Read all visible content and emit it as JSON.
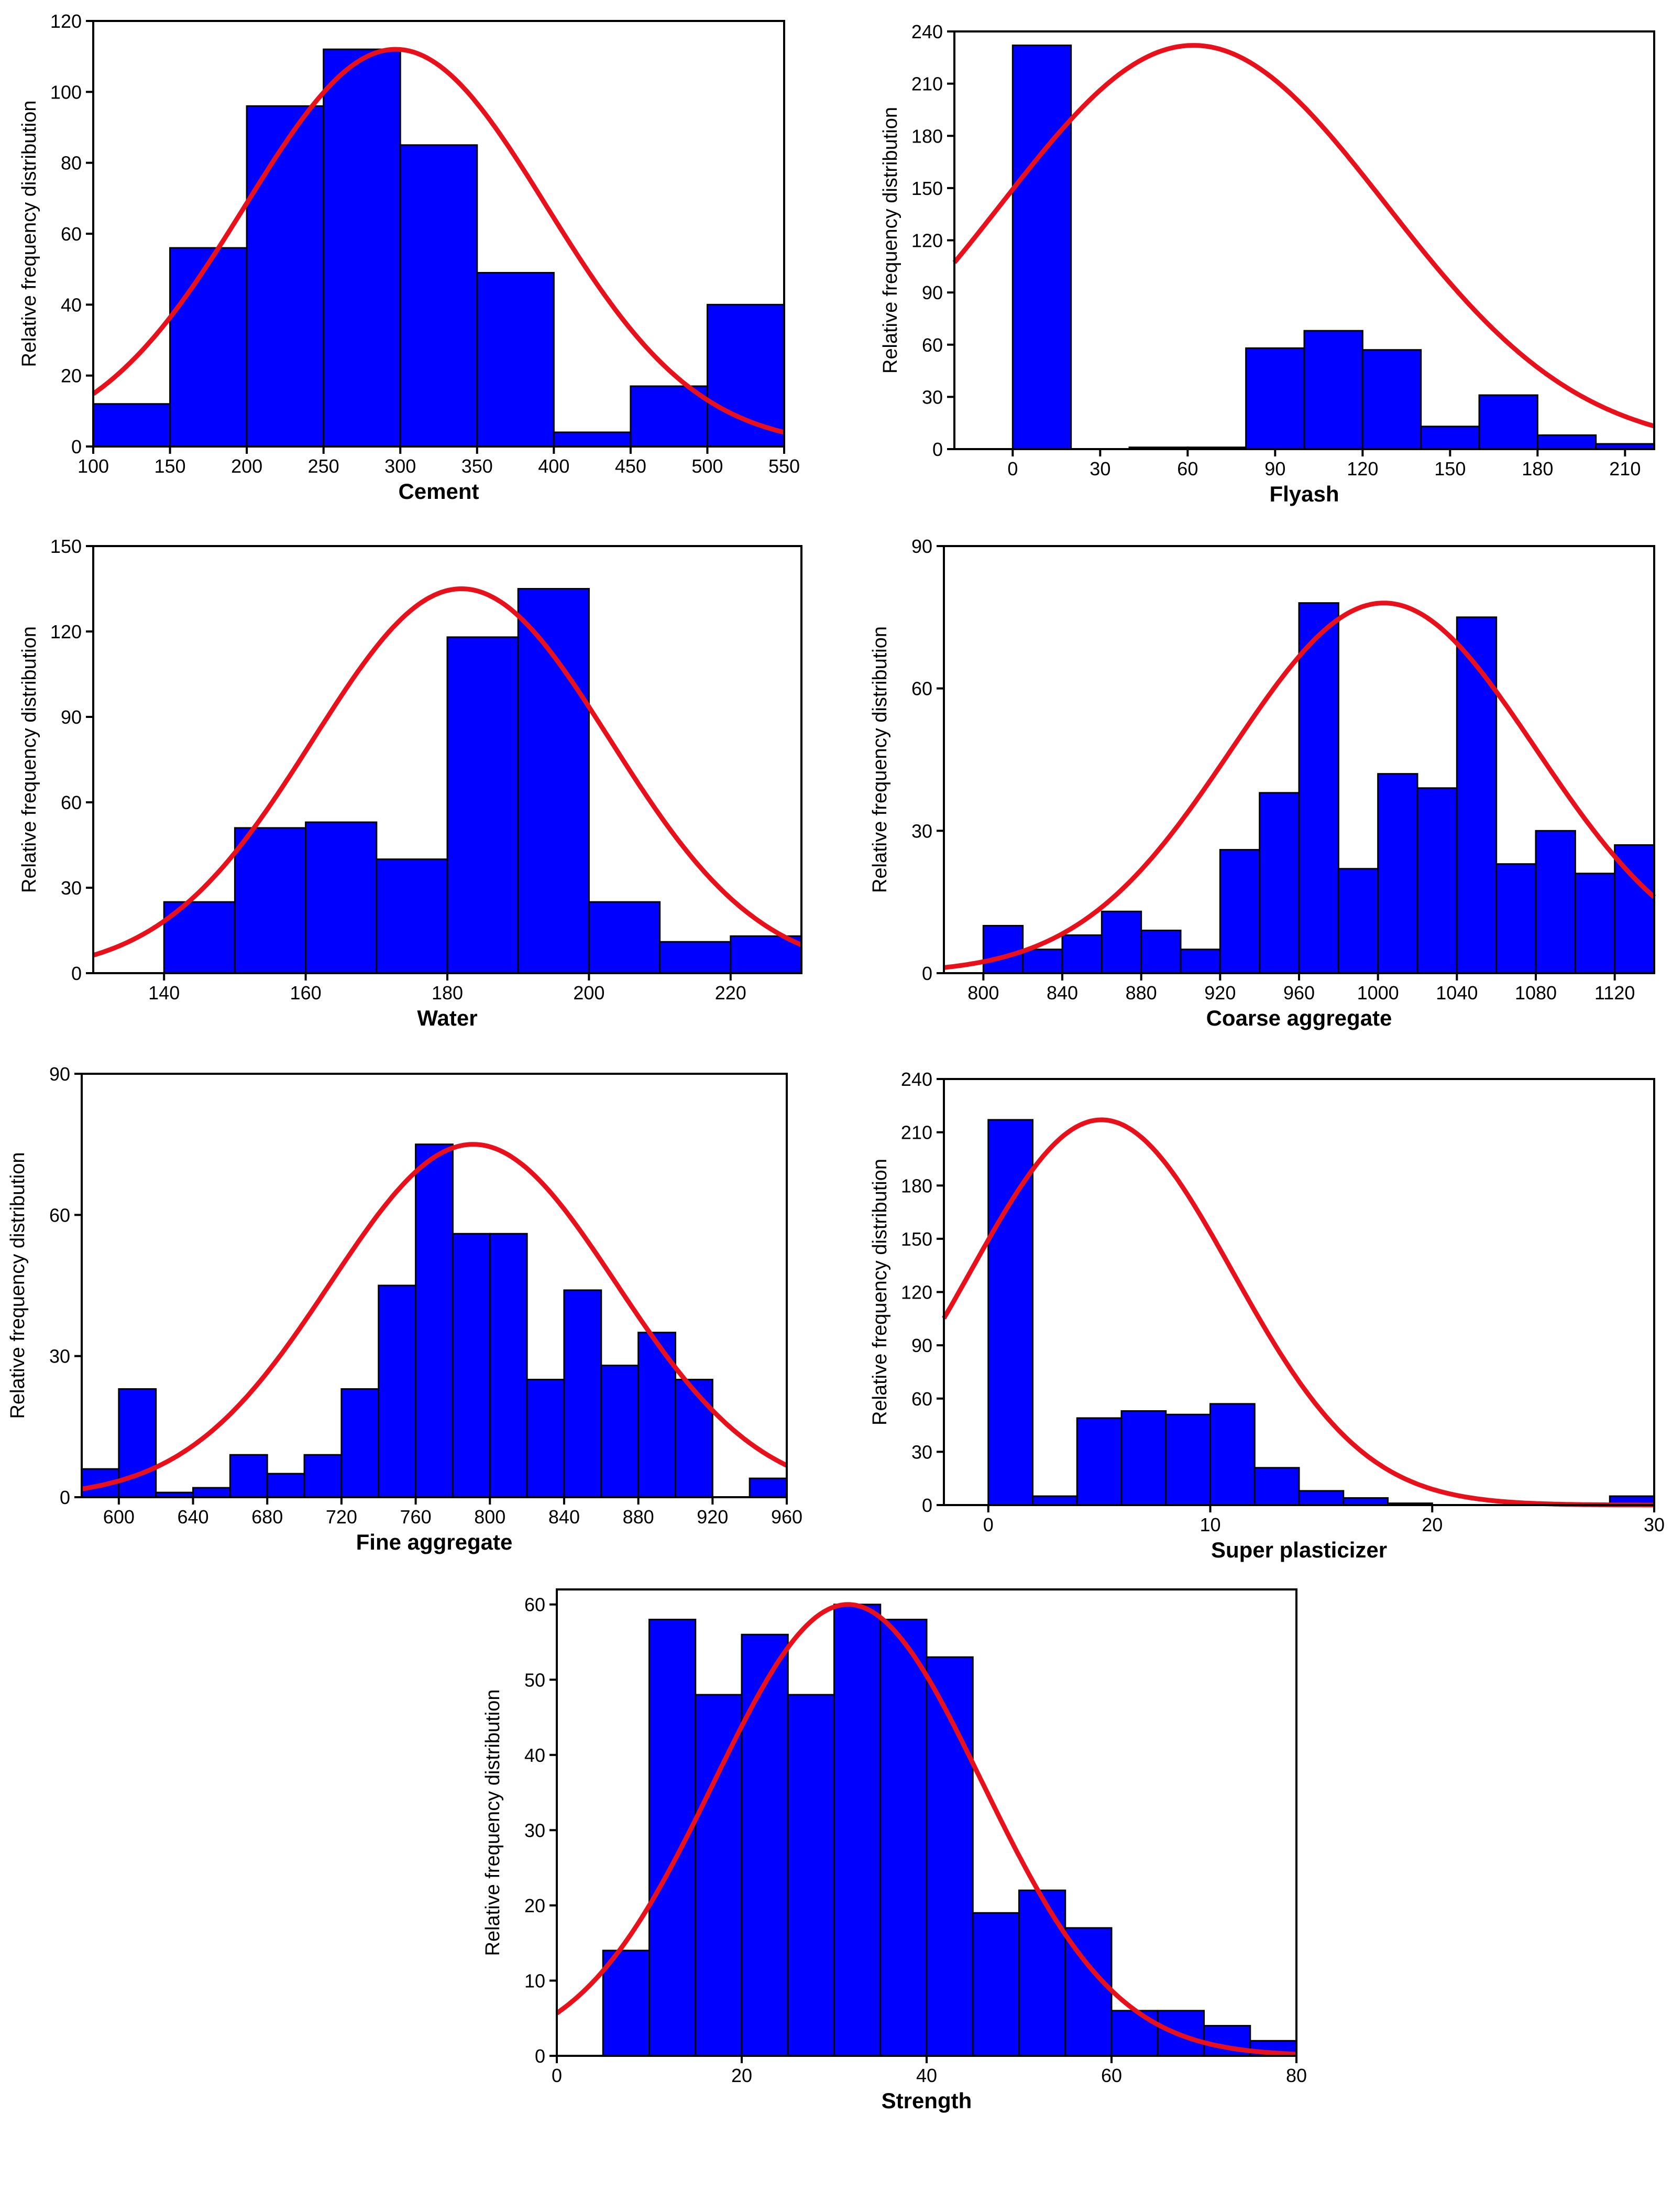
{
  "colors": {
    "bar_fill": "#0000ff",
    "bar_stroke": "#000000",
    "curve": "#e8101a",
    "axis": "#000000"
  },
  "chart_data": [
    {
      "type": "bar",
      "xlabel": "Cement",
      "ylabel": "Relative frequency distribution",
      "xlim": [
        100,
        550
      ],
      "ylim": [
        0,
        120
      ],
      "xticks": [
        100,
        150,
        200,
        250,
        300,
        350,
        400,
        450,
        500,
        550
      ],
      "yticks": [
        0,
        20,
        40,
        60,
        80,
        100,
        120
      ],
      "bins": [
        [
          100,
          150,
          12
        ],
        [
          150,
          200,
          56
        ],
        [
          200,
          250,
          96
        ],
        [
          250,
          300,
          112
        ],
        [
          300,
          350,
          85
        ],
        [
          350,
          400,
          49
        ],
        [
          400,
          450,
          4
        ],
        [
          450,
          500,
          17
        ],
        [
          500,
          550,
          40
        ]
      ],
      "normal_fit": {
        "mean": 297,
        "sd": 98,
        "peak": 112
      },
      "bar_fill": "#0000ff",
      "curve_color": "#e8101a"
    },
    {
      "type": "bar",
      "xlabel": "Flyash",
      "ylabel": "Relative frequency distribution",
      "xlim": [
        -20,
        220
      ],
      "ylim": [
        0,
        240
      ],
      "xticks": [
        0,
        30,
        60,
        90,
        120,
        150,
        180,
        210
      ],
      "yticks": [
        0,
        30,
        60,
        90,
        120,
        150,
        180,
        210,
        240
      ],
      "bins": [
        [
          0,
          20,
          232
        ],
        [
          20,
          40,
          0
        ],
        [
          40,
          60,
          1
        ],
        [
          60,
          80,
          1
        ],
        [
          80,
          100,
          58
        ],
        [
          100,
          120,
          68
        ],
        [
          120,
          140,
          57
        ],
        [
          140,
          160,
          13
        ],
        [
          160,
          180,
          31
        ],
        [
          180,
          200,
          8
        ],
        [
          200,
          220,
          3
        ]
      ],
      "normal_fit": {
        "mean": 62,
        "sd": 66,
        "peak": 232
      },
      "bar_fill": "#0000ff",
      "curve_color": "#e8101a"
    },
    {
      "type": "bar",
      "xlabel": "Water",
      "ylabel": "Relative frequency distribution",
      "xlim": [
        130,
        230
      ],
      "ylim": [
        0,
        150
      ],
      "xticks": [
        140,
        160,
        180,
        200,
        220
      ],
      "yticks": [
        0,
        30,
        60,
        90,
        120,
        150
      ],
      "bins": [
        [
          140,
          150,
          25
        ],
        [
          150,
          160,
          51
        ],
        [
          160,
          170,
          53
        ],
        [
          170,
          180,
          40
        ],
        [
          180,
          190,
          118
        ],
        [
          190,
          200,
          135
        ],
        [
          200,
          210,
          25
        ],
        [
          210,
          220,
          11
        ],
        [
          220,
          230,
          13
        ]
      ],
      "normal_fit": {
        "mean": 182,
        "sd": 21,
        "peak": 135
      },
      "bar_fill": "#0000ff",
      "curve_color": "#e8101a"
    },
    {
      "type": "bar",
      "xlabel": "Coarse aggregate",
      "ylabel": "Relative frequency distribution",
      "xlim": [
        780,
        1140
      ],
      "ylim": [
        0,
        90
      ],
      "xticks": [
        800,
        840,
        880,
        920,
        960,
        1000,
        1040,
        1080,
        1120
      ],
      "yticks": [
        0,
        30,
        60,
        90
      ],
      "bins": [
        [
          800,
          820,
          10
        ],
        [
          820,
          840,
          5
        ],
        [
          840,
          860,
          8
        ],
        [
          860,
          880,
          13
        ],
        [
          880,
          900,
          9
        ],
        [
          900,
          920,
          5
        ],
        [
          920,
          940,
          26
        ],
        [
          940,
          960,
          38
        ],
        [
          960,
          980,
          78
        ],
        [
          980,
          1000,
          22
        ],
        [
          1000,
          1020,
          42
        ],
        [
          1020,
          1040,
          39
        ],
        [
          1040,
          1060,
          75
        ],
        [
          1060,
          1080,
          23
        ],
        [
          1080,
          1100,
          30
        ],
        [
          1100,
          1120,
          21
        ],
        [
          1120,
          1140,
          27
        ]
      ],
      "normal_fit": {
        "mean": 1003,
        "sd": 77,
        "peak": 78
      },
      "bar_fill": "#0000ff",
      "curve_color": "#e8101a"
    },
    {
      "type": "bar",
      "xlabel": "Fine aggregate",
      "ylabel": "Relative frequency distribution",
      "xlim": [
        580,
        960
      ],
      "ylim": [
        0,
        90
      ],
      "xticks": [
        600,
        640,
        680,
        720,
        760,
        800,
        840,
        880,
        920,
        960
      ],
      "yticks": [
        0,
        30,
        60,
        90
      ],
      "bins": [
        [
          580,
          600,
          6
        ],
        [
          600,
          620,
          23
        ],
        [
          620,
          640,
          1
        ],
        [
          640,
          660,
          2
        ],
        [
          660,
          680,
          9
        ],
        [
          680,
          700,
          5
        ],
        [
          700,
          720,
          9
        ],
        [
          720,
          740,
          23
        ],
        [
          740,
          760,
          45
        ],
        [
          760,
          780,
          75
        ],
        [
          780,
          800,
          56
        ],
        [
          800,
          820,
          56
        ],
        [
          820,
          840,
          25
        ],
        [
          840,
          860,
          44
        ],
        [
          860,
          880,
          28
        ],
        [
          880,
          900,
          35
        ],
        [
          900,
          920,
          25
        ],
        [
          920,
          940,
          0
        ],
        [
          940,
          960,
          4
        ]
      ],
      "normal_fit": {
        "mean": 791,
        "sd": 77,
        "peak": 75
      },
      "bar_fill": "#0000ff",
      "curve_color": "#e8101a"
    },
    {
      "type": "bar",
      "xlabel": "Super plasticizer",
      "ylabel": "Relative frequency distribution",
      "xlim": [
        -2,
        30
      ],
      "ylim": [
        0,
        240
      ],
      "xticks": [
        0,
        10,
        20,
        30
      ],
      "yticks": [
        0,
        30,
        60,
        90,
        120,
        150,
        180,
        210,
        240
      ],
      "bins": [
        [
          0,
          2,
          217
        ],
        [
          2,
          4,
          5
        ],
        [
          4,
          6,
          49
        ],
        [
          6,
          8,
          53
        ],
        [
          8,
          10,
          51
        ],
        [
          10,
          12,
          57
        ],
        [
          12,
          14,
          21
        ],
        [
          14,
          16,
          8
        ],
        [
          16,
          18,
          4
        ],
        [
          18,
          20,
          1
        ],
        [
          20,
          22,
          0
        ],
        [
          22,
          24,
          0
        ],
        [
          24,
          26,
          0
        ],
        [
          26,
          28,
          0
        ],
        [
          28,
          30,
          5
        ]
      ],
      "normal_fit": {
        "mean": 5.1,
        "sd": 5.9,
        "peak": 217
      },
      "bar_fill": "#0000ff",
      "curve_color": "#e8101a"
    },
    {
      "type": "bar",
      "xlabel": "Strength",
      "ylabel": "Relative frequency distribution",
      "xlim": [
        0,
        80
      ],
      "ylim": [
        0,
        62
      ],
      "xticks": [
        0,
        20,
        40,
        60,
        80
      ],
      "yticks": [
        0,
        10,
        20,
        30,
        40,
        50,
        60
      ],
      "bins": [
        [
          5,
          10,
          14
        ],
        [
          10,
          15,
          58
        ],
        [
          15,
          20,
          48
        ],
        [
          20,
          25,
          56
        ],
        [
          25,
          30,
          48
        ],
        [
          30,
          35,
          60
        ],
        [
          35,
          40,
          58
        ],
        [
          40,
          45,
          53
        ],
        [
          45,
          50,
          19
        ],
        [
          50,
          55,
          22
        ],
        [
          55,
          60,
          17
        ],
        [
          60,
          65,
          6
        ],
        [
          65,
          70,
          6
        ],
        [
          70,
          75,
          4
        ],
        [
          75,
          80,
          2
        ]
      ],
      "normal_fit": {
        "mean": 31.5,
        "sd": 14.5,
        "peak": 60
      },
      "bar_fill": "#0000ff",
      "curve_color": "#e8101a"
    }
  ]
}
